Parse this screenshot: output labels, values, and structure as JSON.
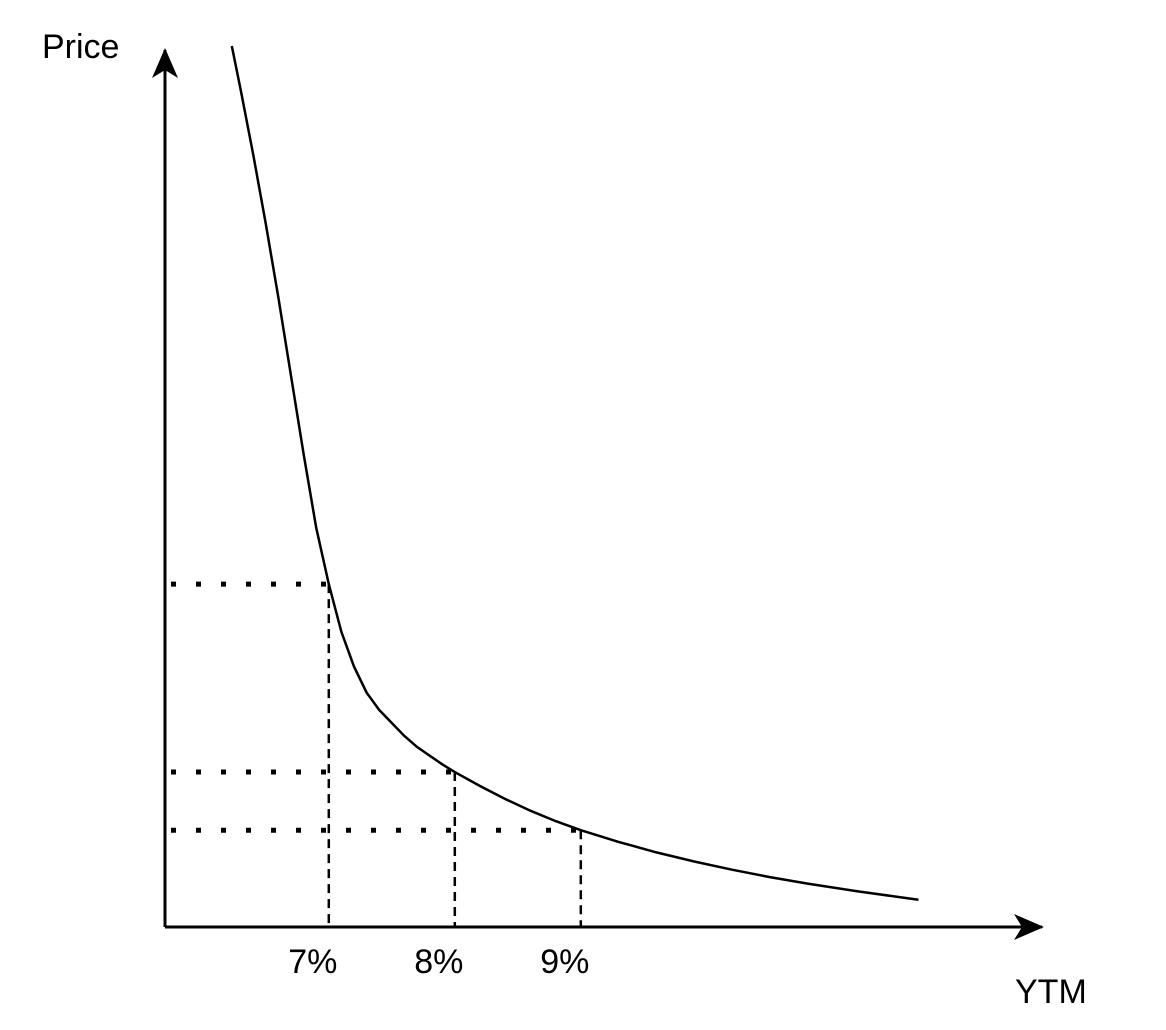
{
  "chart_data": {
    "type": "line",
    "title": "",
    "xlabel": "YTM",
    "ylabel": "Price",
    "x_tick_labels": [
      "7%",
      "8%",
      "9%"
    ],
    "y_tick_labels": [],
    "grid": false,
    "legend": "none",
    "axis_color": "#000000",
    "line_color": "#000000",
    "curve": {
      "x": [
        6.23,
        6.3,
        6.4,
        6.5,
        6.6,
        6.7,
        6.8,
        6.9,
        7.0,
        7.1,
        7.2,
        7.3,
        7.4,
        7.5,
        7.6,
        7.7,
        7.8,
        7.9,
        8.0,
        8.2,
        8.4,
        8.6,
        8.8,
        9.0,
        9.3,
        9.6,
        9.9,
        10.2,
        10.5,
        10.8,
        11.0,
        11.2,
        11.5,
        11.68
      ],
      "y": [
        203,
        193,
        178,
        162,
        145,
        127,
        109,
        92,
        79,
        68,
        60,
        54,
        50,
        47,
        44,
        41.5,
        39.5,
        37.5,
        35.7,
        32.5,
        29.5,
        26.8,
        24.4,
        22.3,
        19.6,
        17.2,
        15.1,
        13.2,
        11.5,
        10.0,
        9.1,
        8.2,
        7.0,
        6.3
      ]
    },
    "reference_points": [
      {
        "x_label": "7%",
        "x": 7.0,
        "y": 79.0,
        "h_style": "dotted",
        "v_style": "dashed"
      },
      {
        "x_label": "8%",
        "x": 8.0,
        "y": 35.7,
        "h_style": "dotted",
        "v_style": "dashed"
      },
      {
        "x_label": "9%",
        "x": 9.0,
        "y": 22.3,
        "h_style": "dotted",
        "v_style": "dashed"
      }
    ]
  }
}
